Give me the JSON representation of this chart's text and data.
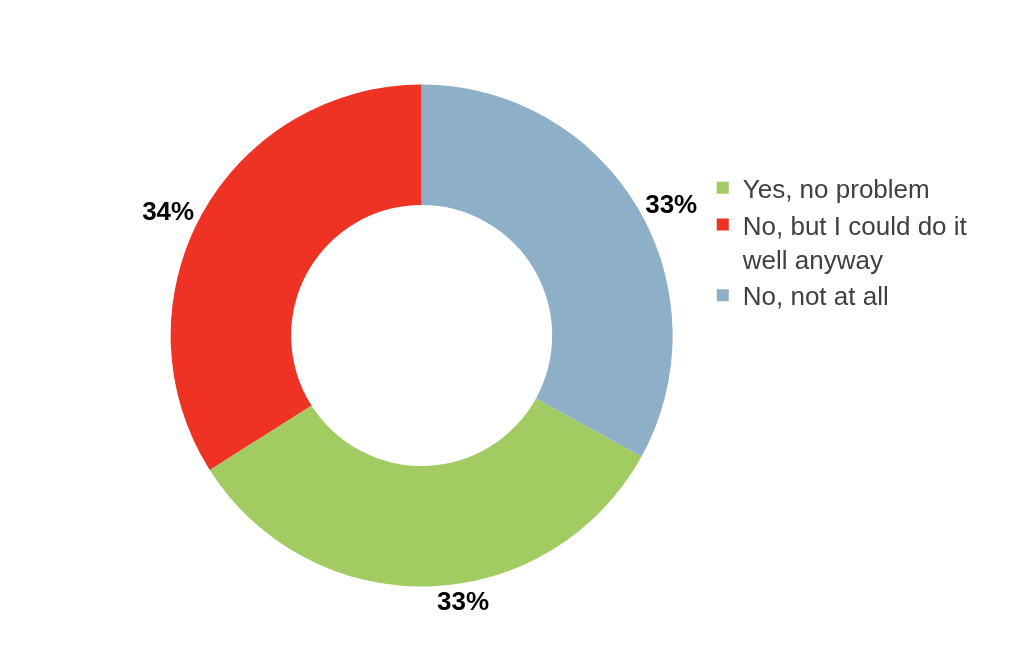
{
  "chart_data": {
    "type": "donut",
    "categories": [
      "Yes, no problem",
      "No, but I could do it well anyway",
      "No, not at all"
    ],
    "values": [
      33,
      34,
      33
    ],
    "value_labels": [
      "33%",
      "34%",
      "33%"
    ],
    "colors": [
      "#a2cc62",
      "#ee3224",
      "#8eafc8"
    ],
    "legend": "right"
  }
}
